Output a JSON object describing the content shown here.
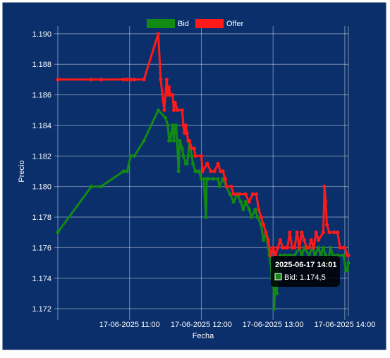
{
  "chart_data": {
    "type": "line",
    "xlabel": "Fecha",
    "ylabel": "Precio",
    "ylim": [
      1.1715,
      1.1905
    ],
    "y_ticks": [
      "1.190",
      "1.188",
      "1.186",
      "1.184",
      "1.182",
      "1.180",
      "1.178",
      "1.176",
      "1.174",
      "1.172"
    ],
    "x_tick_labels": [
      "17-06-2025 11:00",
      "17-06-2025 12:00",
      "17-06-2025 13:00",
      "17-06-2025 14:00"
    ],
    "x_unit": "minutes since 10:00 on 17-06-2025",
    "grid": true,
    "legend_position": "top-center",
    "colors": {
      "background": "#0a2f6b",
      "frame": "#ffffff",
      "grid": "rgba(255,255,255,0.45)"
    },
    "series": [
      {
        "name": "Bid",
        "color": "#138a13",
        "points": [
          [
            0,
            1.177
          ],
          [
            28,
            1.18
          ],
          [
            36,
            1.18
          ],
          [
            55,
            1.181
          ],
          [
            58,
            1.181
          ],
          [
            61,
            1.182
          ],
          [
            64,
            1.182
          ],
          [
            72,
            1.183
          ],
          [
            84,
            1.185
          ],
          [
            90,
            1.1845
          ],
          [
            92,
            1.184
          ],
          [
            93,
            1.183
          ],
          [
            94,
            1.183
          ],
          [
            95,
            1.1835
          ],
          [
            96,
            1.184
          ],
          [
            97,
            1.183
          ],
          [
            98,
            1.184
          ],
          [
            99,
            1.184
          ],
          [
            101,
            1.181
          ],
          [
            102,
            1.183
          ],
          [
            104,
            1.1825
          ],
          [
            105,
            1.182
          ],
          [
            107,
            1.1815
          ],
          [
            108,
            1.1815
          ],
          [
            109,
            1.182
          ],
          [
            110,
            1.183
          ],
          [
            112,
            1.182
          ],
          [
            113,
            1.1815
          ],
          [
            115,
            1.181
          ],
          [
            116,
            1.181
          ],
          [
            118,
            1.181
          ],
          [
            120,
            1.1805
          ],
          [
            122,
            1.1805
          ],
          [
            124,
            1.178
          ],
          [
            124.5,
            1.1805
          ],
          [
            126,
            1.1805
          ],
          [
            130,
            1.1805
          ],
          [
            134,
            1.1805
          ],
          [
            135,
            1.18
          ],
          [
            138,
            1.1805
          ],
          [
            141,
            1.18
          ],
          [
            144,
            1.1795
          ],
          [
            147,
            1.179
          ],
          [
            150,
            1.1795
          ],
          [
            153,
            1.179
          ],
          [
            155,
            1.1785
          ],
          [
            157,
            1.179
          ],
          [
            160,
            1.1785
          ],
          [
            162,
            1.178
          ],
          [
            165,
            1.1785
          ],
          [
            167,
            1.178
          ],
          [
            170,
            1.1775
          ],
          [
            172,
            1.1765
          ],
          [
            174,
            1.177
          ],
          [
            176,
            1.176
          ],
          [
            177,
            1.1755
          ],
          [
            178,
            1.175
          ],
          [
            179,
            1.174
          ],
          [
            180,
            1.1745
          ],
          [
            181,
            1.172
          ],
          [
            182,
            1.1745
          ],
          [
            183,
            1.173
          ],
          [
            184,
            1.175
          ],
          [
            186,
            1.1755
          ],
          [
            190,
            1.1755
          ],
          [
            194,
            1.1755
          ],
          [
            198,
            1.1755
          ],
          [
            202,
            1.176
          ],
          [
            204,
            1.1755
          ],
          [
            206,
            1.176
          ],
          [
            210,
            1.1755
          ],
          [
            213,
            1.176
          ],
          [
            215,
            1.1755
          ],
          [
            218,
            1.176
          ],
          [
            220,
            1.1755
          ],
          [
            222,
            1.176
          ],
          [
            224,
            1.1755
          ],
          [
            226,
            1.175
          ],
          [
            228,
            1.176
          ],
          [
            230,
            1.1755
          ],
          [
            234,
            1.1755
          ],
          [
            239,
            1.1755
          ],
          [
            241,
            1.1745
          ],
          [
            242,
            1.1745
          ],
          [
            243,
            1.175
          ]
        ]
      },
      {
        "name": "Offer",
        "color": "#ff1a1a",
        "points": [
          [
            0,
            1.187
          ],
          [
            28,
            1.187
          ],
          [
            36,
            1.187
          ],
          [
            55,
            1.187
          ],
          [
            58,
            1.187
          ],
          [
            61,
            1.187
          ],
          [
            64,
            1.187
          ],
          [
            72,
            1.187
          ],
          [
            84,
            1.19
          ],
          [
            86,
            1.187
          ],
          [
            89,
            1.185
          ],
          [
            91,
            1.187
          ],
          [
            92,
            1.186
          ],
          [
            93,
            1.1865
          ],
          [
            94,
            1.186
          ],
          [
            96,
            1.186
          ],
          [
            97,
            1.185
          ],
          [
            98,
            1.1855
          ],
          [
            100,
            1.185
          ],
          [
            104,
            1.185
          ],
          [
            105,
            1.184
          ],
          [
            106,
            1.1835
          ],
          [
            107,
            1.184
          ],
          [
            108,
            1.1835
          ],
          [
            109,
            1.183
          ],
          [
            110,
            1.183
          ],
          [
            112,
            1.1825
          ],
          [
            114,
            1.1825
          ],
          [
            115,
            1.182
          ],
          [
            120,
            1.182
          ],
          [
            121,
            1.181
          ],
          [
            125,
            1.1815
          ],
          [
            128,
            1.181
          ],
          [
            131,
            1.181
          ],
          [
            134,
            1.1815
          ],
          [
            136,
            1.181
          ],
          [
            138,
            1.181
          ],
          [
            140,
            1.1805
          ],
          [
            141,
            1.18
          ],
          [
            145,
            1.18
          ],
          [
            147,
            1.1795
          ],
          [
            152,
            1.1795
          ],
          [
            157,
            1.1795
          ],
          [
            160,
            1.179
          ],
          [
            163,
            1.1795
          ],
          [
            166,
            1.1795
          ],
          [
            168,
            1.1785
          ],
          [
            170,
            1.178
          ],
          [
            172,
            1.1775
          ],
          [
            174,
            1.177
          ],
          [
            176,
            1.1765
          ],
          [
            178,
            1.1755
          ],
          [
            180,
            1.176
          ],
          [
            182,
            1.1755
          ],
          [
            184,
            1.176
          ],
          [
            186,
            1.1765
          ],
          [
            188,
            1.176
          ],
          [
            190,
            1.176
          ],
          [
            192,
            1.176
          ],
          [
            194,
            1.177
          ],
          [
            196,
            1.176
          ],
          [
            198,
            1.176
          ],
          [
            200,
            1.177
          ],
          [
            202,
            1.176
          ],
          [
            204,
            1.177
          ],
          [
            206,
            1.1765
          ],
          [
            208,
            1.176
          ],
          [
            210,
            1.176
          ],
          [
            212,
            1.1765
          ],
          [
            214,
            1.176
          ],
          [
            216,
            1.177
          ],
          [
            218,
            1.1765
          ],
          [
            222,
            1.177
          ],
          [
            223,
            1.18
          ],
          [
            224,
            1.179
          ],
          [
            225,
            1.1775
          ],
          [
            227,
            1.177
          ],
          [
            231,
            1.177
          ],
          [
            234,
            1.177
          ],
          [
            236,
            1.176
          ],
          [
            239,
            1.176
          ],
          [
            240,
            1.176
          ],
          [
            242,
            1.1755
          ],
          [
            243,
            1.1755
          ]
        ]
      }
    ],
    "tooltip": {
      "title": "2025-06-17 14:01",
      "label": "Bid: 1.174,5",
      "series_color": "#138a13"
    }
  }
}
